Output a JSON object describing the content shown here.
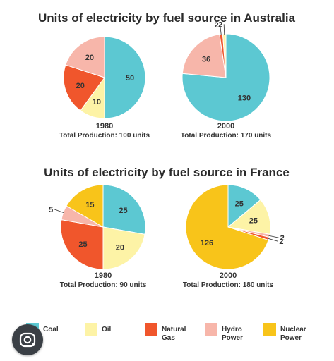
{
  "colors": {
    "Coal": "#5cc8d2",
    "Oil": "#fdf3a6",
    "Natural Gas": "#f0562c",
    "Hydro Power": "#f7b6aa",
    "Nuclear Power": "#f8c41a"
  },
  "legend": {
    "items": [
      {
        "key": "Coal",
        "lines": [
          "Coal"
        ]
      },
      {
        "key": "Oil",
        "lines": [
          "Oil"
        ]
      },
      {
        "key": "Natural Gas",
        "lines": [
          "Natural",
          "Gas"
        ]
      },
      {
        "key": "Hydro Power",
        "lines": [
          "Hydro",
          "Power"
        ]
      },
      {
        "key": "Nuclear Power",
        "lines": [
          "Nuclear",
          "Power"
        ]
      }
    ]
  },
  "lens_icon": "google-lens-icon",
  "chart_data": [
    {
      "type": "pie",
      "group_title": "Units of electricity by fuel source in Australia",
      "year": "1980",
      "caption": "Total Production: 100 units",
      "slices": [
        {
          "label": "Coal",
          "value": 50
        },
        {
          "label": "Oil",
          "value": 10
        },
        {
          "label": "Natural Gas",
          "value": 20
        },
        {
          "label": "Hydro Power",
          "value": 20
        }
      ]
    },
    {
      "type": "pie",
      "group_title": "Units of electricity by fuel source in Australia",
      "year": "2000",
      "caption": "Total Production: 170 units",
      "slices": [
        {
          "label": "Coal",
          "value": 130
        },
        {
          "label": "Oil",
          "value": 2
        },
        {
          "label": "Natural Gas",
          "value": 2
        },
        {
          "label": "Hydro Power",
          "value": 36
        }
      ]
    },
    {
      "type": "pie",
      "group_title": "Units of electricity by fuel source in France",
      "year": "1980",
      "caption": "Total Production: 90 units",
      "slices": [
        {
          "label": "Coal",
          "value": 25
        },
        {
          "label": "Oil",
          "value": 20
        },
        {
          "label": "Natural Gas",
          "value": 25
        },
        {
          "label": "Hydro Power",
          "value": 5
        },
        {
          "label": "Nuclear Power",
          "value": 15
        }
      ]
    },
    {
      "type": "pie",
      "group_title": "Units of electricity by fuel source in France",
      "year": "2000",
      "caption": "Total Production: 180 units",
      "slices": [
        {
          "label": "Coal",
          "value": 25
        },
        {
          "label": "Oil",
          "value": 25
        },
        {
          "label": "Natural Gas",
          "value": 2
        },
        {
          "label": "Hydro Power",
          "value": 2
        },
        {
          "label": "Nuclear Power",
          "value": 126
        }
      ]
    }
  ]
}
